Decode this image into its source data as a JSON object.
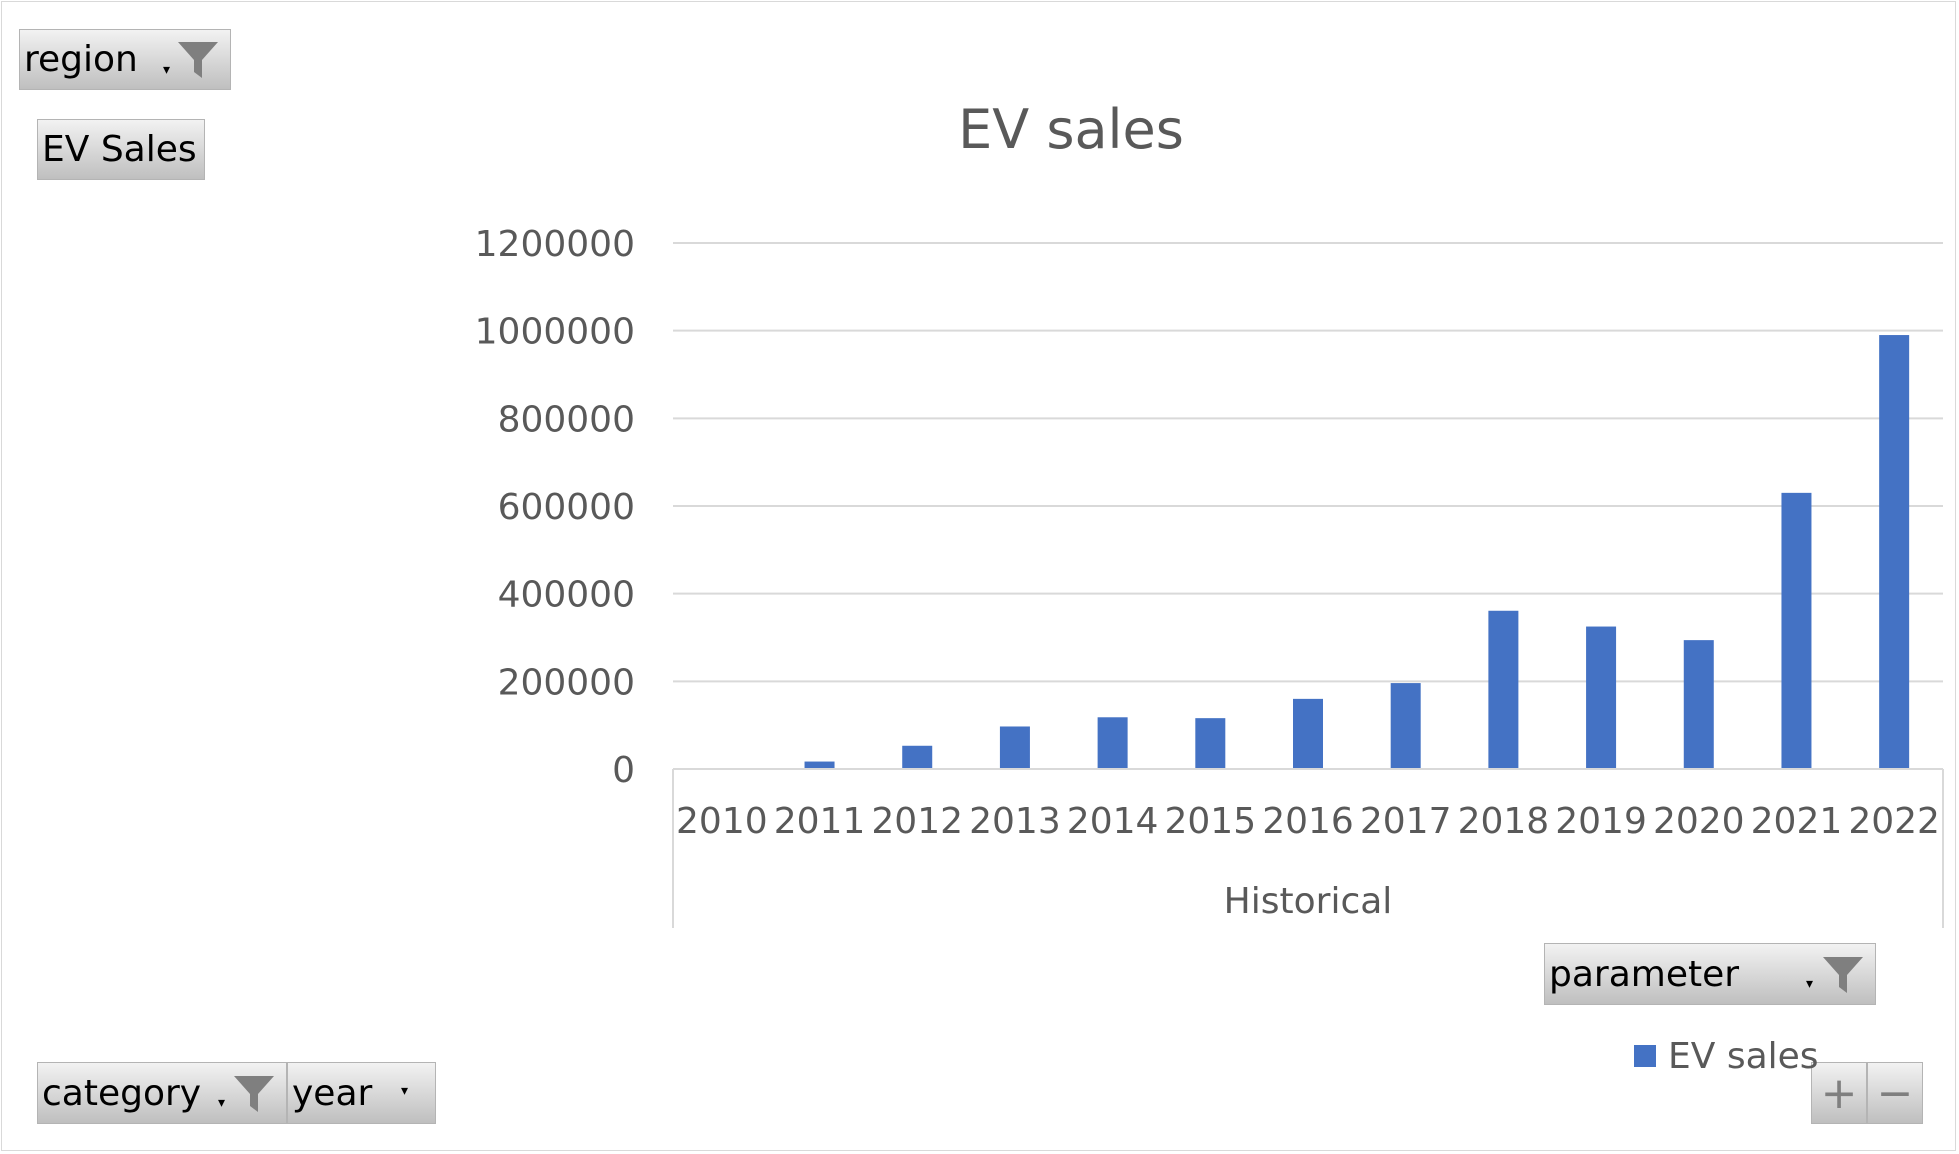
{
  "pivot_fields": {
    "report_filter": "region",
    "value_field": "EV Sales",
    "axis_fields": [
      "category",
      "year"
    ],
    "legend_field": "parameter"
  },
  "zoom_controls": {
    "expand": "+",
    "collapse": "−"
  },
  "chart_data": {
    "type": "bar",
    "title": "EV sales",
    "categories": [
      "2010",
      "2011",
      "2012",
      "2013",
      "2014",
      "2015",
      "2016",
      "2017",
      "2018",
      "2019",
      "2020",
      "2021",
      "2022"
    ],
    "category_group": "Historical",
    "series": [
      {
        "name": "EV sales",
        "color": "#4472c4",
        "values": [
          1200,
          17000,
          53000,
          97000,
          118000,
          116000,
          160000,
          196000,
          361000,
          325000,
          294000,
          630000,
          990000
        ]
      }
    ],
    "yticks": [
      0,
      200000,
      400000,
      600000,
      800000,
      1000000,
      1200000
    ],
    "ylim": [
      0,
      1200000
    ],
    "grid": true,
    "legend_position": "bottom-right"
  }
}
